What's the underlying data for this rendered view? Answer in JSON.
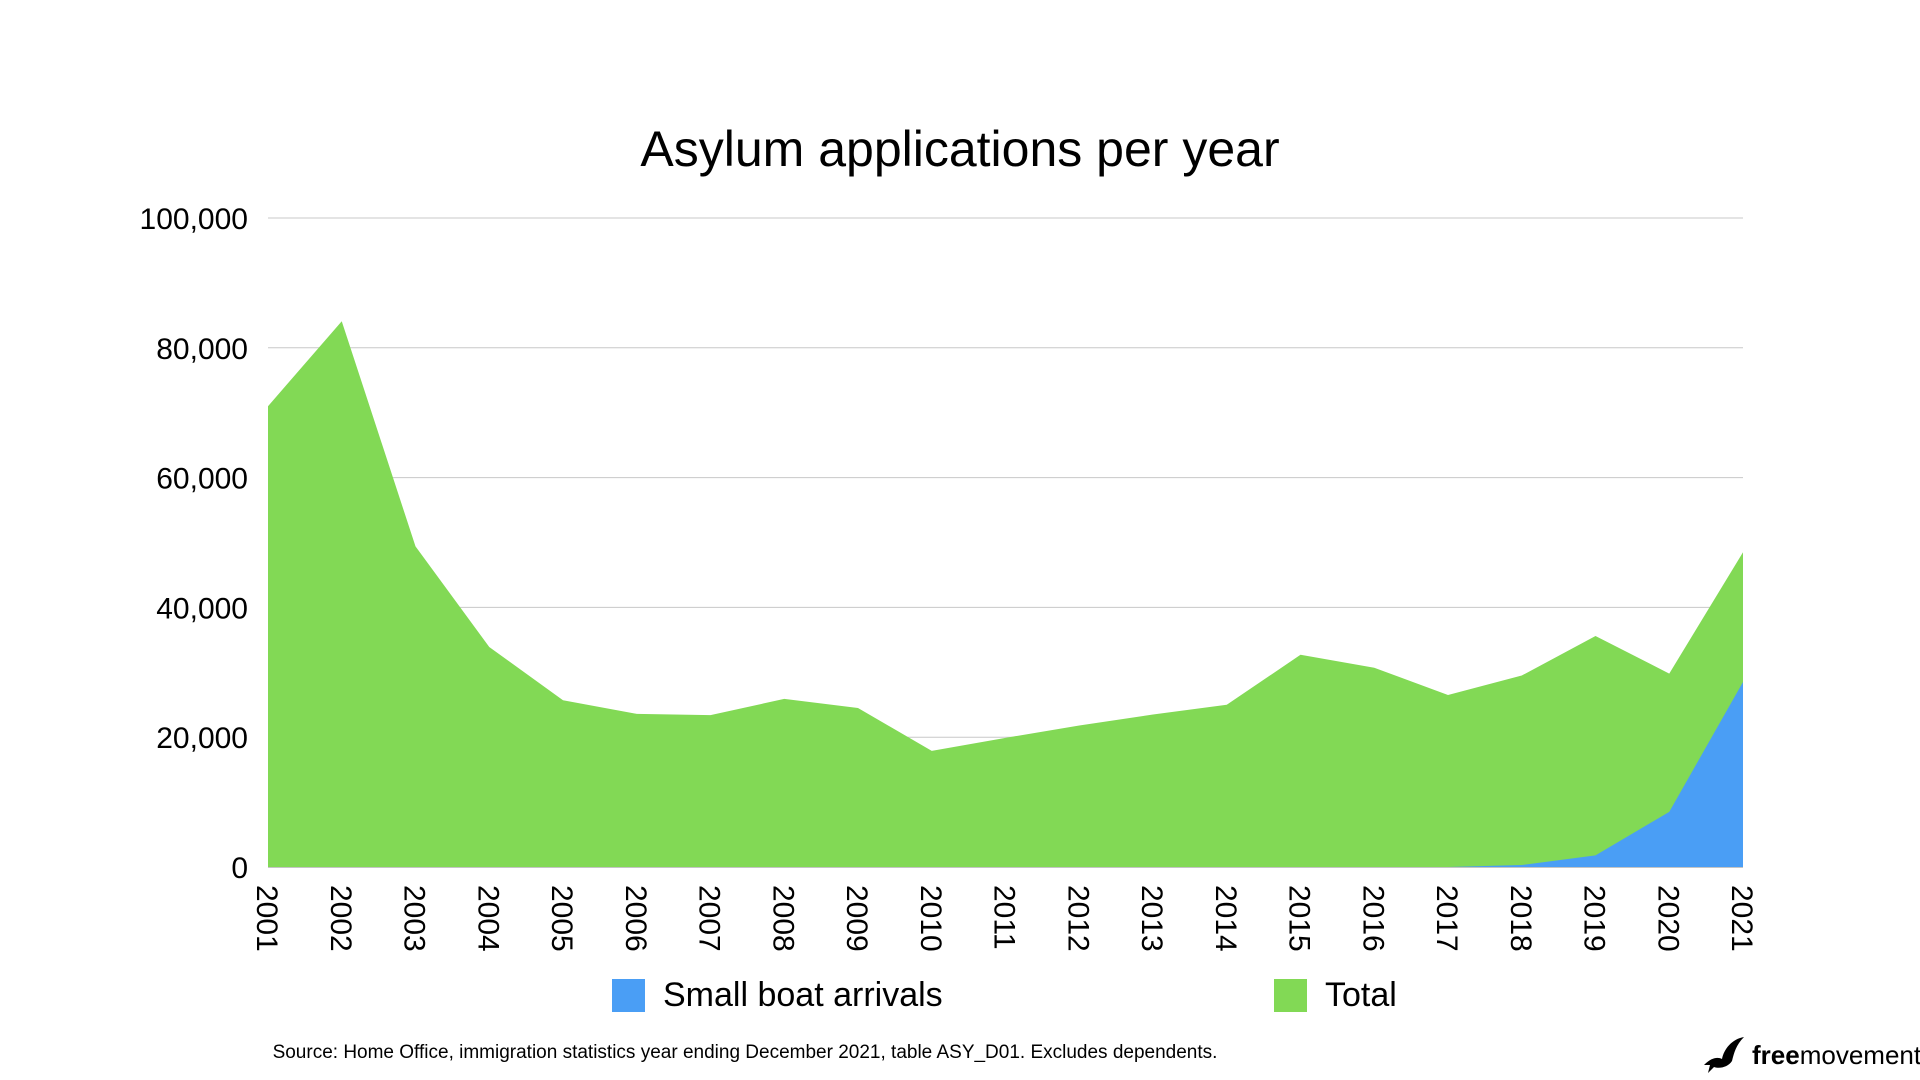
{
  "chart_data": {
    "type": "area",
    "title": "Asylum applications per year",
    "xlabel": "",
    "ylabel": "",
    "x": [
      "2001",
      "2002",
      "2003",
      "2004",
      "2005",
      "2006",
      "2007",
      "2008",
      "2009",
      "2010",
      "2011",
      "2012",
      "2013",
      "2014",
      "2015",
      "2016",
      "2017",
      "2018",
      "2019",
      "2020",
      "2021"
    ],
    "ylim": [
      0,
      100000
    ],
    "yticks": [
      "0",
      "20,000",
      "40,000",
      "60,000",
      "80,000",
      "100,000"
    ],
    "grid": true,
    "legend_position": "bottom",
    "series": [
      {
        "name": "Total",
        "color": "#82d955",
        "values": [
          71000,
          84100,
          49400,
          33900,
          25700,
          23600,
          23400,
          25900,
          24500,
          17900,
          19900,
          21800,
          23500,
          25000,
          32700,
          30700,
          26500,
          29500,
          35600,
          29800,
          48500
        ]
      },
      {
        "name": "Small boat arrivals",
        "color": "#4a9ef5",
        "values": [
          0,
          0,
          0,
          0,
          0,
          0,
          0,
          0,
          0,
          0,
          0,
          0,
          0,
          0,
          0,
          0,
          0,
          300,
          1800,
          8500,
          28500
        ]
      }
    ]
  },
  "legend": {
    "small_boat_label": "Small boat arrivals",
    "total_label": "Total"
  },
  "source": "Source: Home Office, immigration statistics year ending December 2021, table ASY_D01. Excludes dependents.",
  "brand": {
    "bold": "free",
    "normal": "movement"
  }
}
